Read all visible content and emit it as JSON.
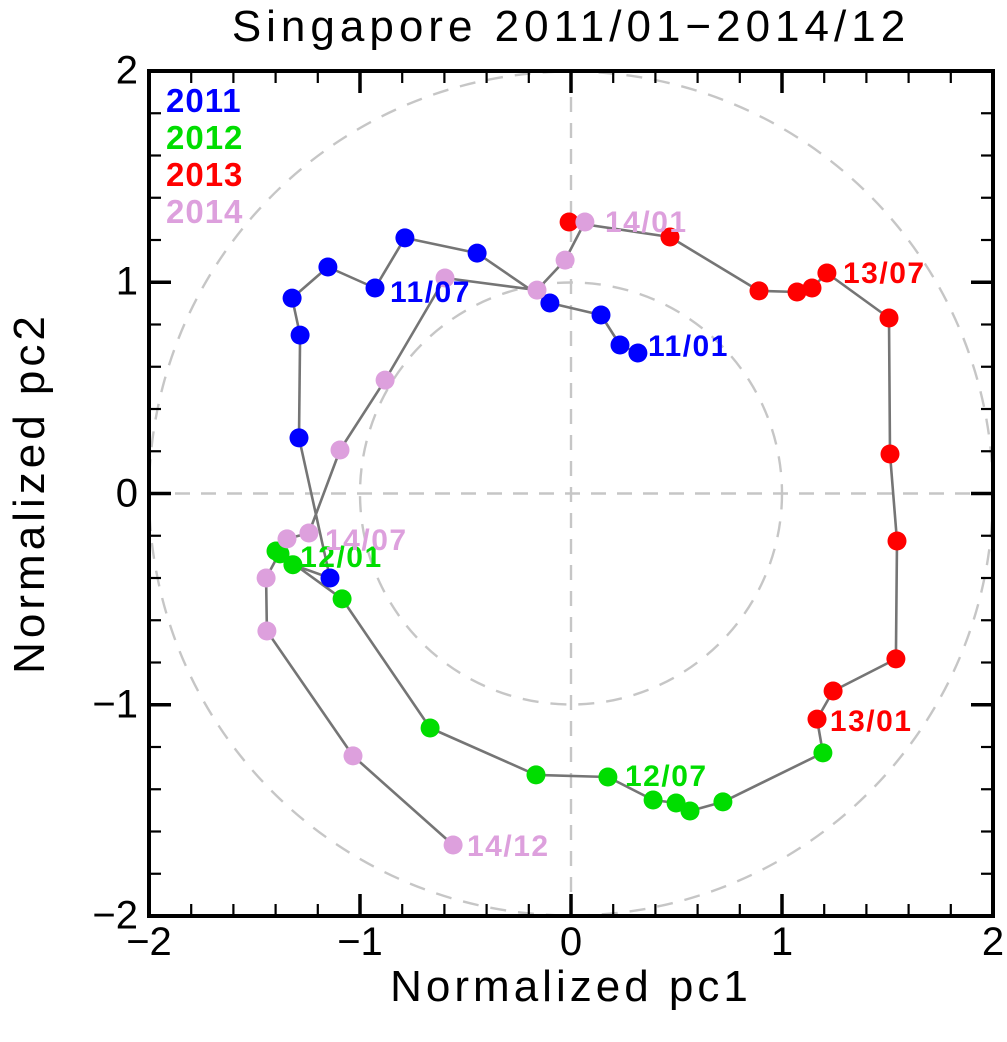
{
  "chart_data": {
    "type": "scatter",
    "connected": true,
    "title": "Singapore 2011/01−2014/12",
    "xlabel": "Normalized pc1",
    "ylabel": "Normalized pc2",
    "xlim": [
      -2,
      2
    ],
    "ylim": [
      -2,
      2
    ],
    "xticks": [
      -2,
      -1,
      0,
      1,
      2
    ],
    "xtick_labels": [
      "−2",
      "−1",
      "0",
      "1",
      "2"
    ],
    "yticks": [
      -2,
      -1,
      0,
      1,
      2
    ],
    "ytick_labels": [
      "−2",
      "−1",
      "0",
      "1",
      "2"
    ],
    "minor_tick_step": 0.2,
    "grid": false,
    "guides": {
      "dashed_circle_radii": [
        1,
        2
      ],
      "dashed_zero_lines": true,
      "color": "#c6c6c6"
    },
    "trajectory": {
      "line_color": "#757575"
    },
    "legend": {
      "position": "top-left",
      "entries": [
        "2011",
        "2012",
        "2013",
        "2014"
      ]
    },
    "series": [
      {
        "name": "2011",
        "color": "#0000ff",
        "labels": [
          "11/01",
          "11/02",
          "11/03",
          "11/04",
          "11/05",
          "11/06",
          "11/07",
          "11/08",
          "11/09",
          "11/10",
          "11/11",
          "11/12"
        ],
        "points": [
          [
            0.317,
            0.665
          ],
          [
            0.232,
            0.703
          ],
          [
            0.142,
            0.845
          ],
          [
            -0.1,
            0.902
          ],
          [
            -0.445,
            1.138
          ],
          [
            -0.787,
            1.21
          ],
          [
            -0.929,
            0.973
          ],
          [
            -1.152,
            1.072
          ],
          [
            -1.322,
            0.925
          ],
          [
            -1.284,
            0.75
          ],
          [
            -1.289,
            0.263
          ],
          [
            -1.142,
            -0.4
          ]
        ]
      },
      {
        "name": "2012",
        "color": "#00dd00",
        "labels": [
          "12/01",
          "12/02",
          "12/03",
          "12/04",
          "12/05",
          "12/06",
          "12/07",
          "12/08",
          "12/09",
          "12/10",
          "12/11",
          "12/12"
        ],
        "points": [
          [
            -1.318,
            -0.337
          ],
          [
            -1.379,
            -0.286
          ],
          [
            -1.398,
            -0.272
          ],
          [
            -1.085,
            -0.499
          ],
          [
            -0.668,
            -1.11
          ],
          [
            -0.166,
            -1.332
          ],
          [
            0.175,
            -1.342
          ],
          [
            0.389,
            -1.451
          ],
          [
            0.498,
            -1.465
          ],
          [
            0.564,
            -1.503
          ],
          [
            0.72,
            -1.46
          ],
          [
            1.194,
            -1.228
          ]
        ]
      },
      {
        "name": "2013",
        "color": "#ff0000",
        "labels": [
          "13/01",
          "13/02",
          "13/03",
          "13/04",
          "13/05",
          "13/06",
          "13/07",
          "13/08",
          "13/09",
          "13/10",
          "13/11",
          "13/12"
        ],
        "points": [
          [
            1.166,
            -1.068
          ],
          [
            1.242,
            -0.935
          ],
          [
            1.54,
            -0.783
          ],
          [
            1.545,
            -0.225
          ],
          [
            1.512,
            0.187
          ],
          [
            1.507,
            0.831
          ],
          [
            1.213,
            1.044
          ],
          [
            1.142,
            0.973
          ],
          [
            1.071,
            0.954
          ],
          [
            0.891,
            0.959
          ],
          [
            0.469,
            1.214
          ],
          [
            -0.009,
            1.285
          ]
        ]
      },
      {
        "name": "2014",
        "color": "#dda0dd",
        "labels": [
          "14/01",
          "14/02",
          "14/03",
          "14/04",
          "14/05",
          "14/06",
          "14/07",
          "14/08",
          "14/09",
          "14/10",
          "14/11",
          "14/12"
        ],
        "points": [
          [
            0.066,
            1.285
          ],
          [
            -0.028,
            1.105
          ],
          [
            -0.161,
            0.963
          ],
          [
            -0.597,
            1.02
          ],
          [
            -0.881,
            0.537
          ],
          [
            -1.095,
            0.206
          ],
          [
            -1.242,
            -0.187
          ],
          [
            -1.346,
            -0.215
          ],
          [
            -1.445,
            -0.4
          ],
          [
            -1.441,
            -0.651
          ],
          [
            -1.033,
            -1.242
          ],
          [
            -0.559,
            -1.664
          ]
        ]
      }
    ],
    "annotations": [
      {
        "text": "11/01",
        "color": "#0000ff",
        "x": 0.365,
        "y": 0.651
      },
      {
        "text": "11/07",
        "color": "#0000ff",
        "x": -0.858,
        "y": 0.906
      },
      {
        "text": "12/01",
        "color": "#00dd00",
        "x": -1.284,
        "y": -0.348
      },
      {
        "text": "12/07",
        "color": "#00dd00",
        "x": 0.256,
        "y": -1.385
      },
      {
        "text": "13/01",
        "color": "#ff0000",
        "x": 1.227,
        "y": -1.124
      },
      {
        "text": "13/07",
        "color": "#ff0000",
        "x": 1.289,
        "y": 0.996
      },
      {
        "text": "14/01",
        "color": "#dda0dd",
        "x": 0.161,
        "y": 1.238
      },
      {
        "text": "14/07",
        "color": "#dda0dd",
        "x": -1.166,
        "y": -0.267
      },
      {
        "text": "14/12",
        "color": "#dda0dd",
        "x": -0.493,
        "y": -1.716
      }
    ]
  }
}
